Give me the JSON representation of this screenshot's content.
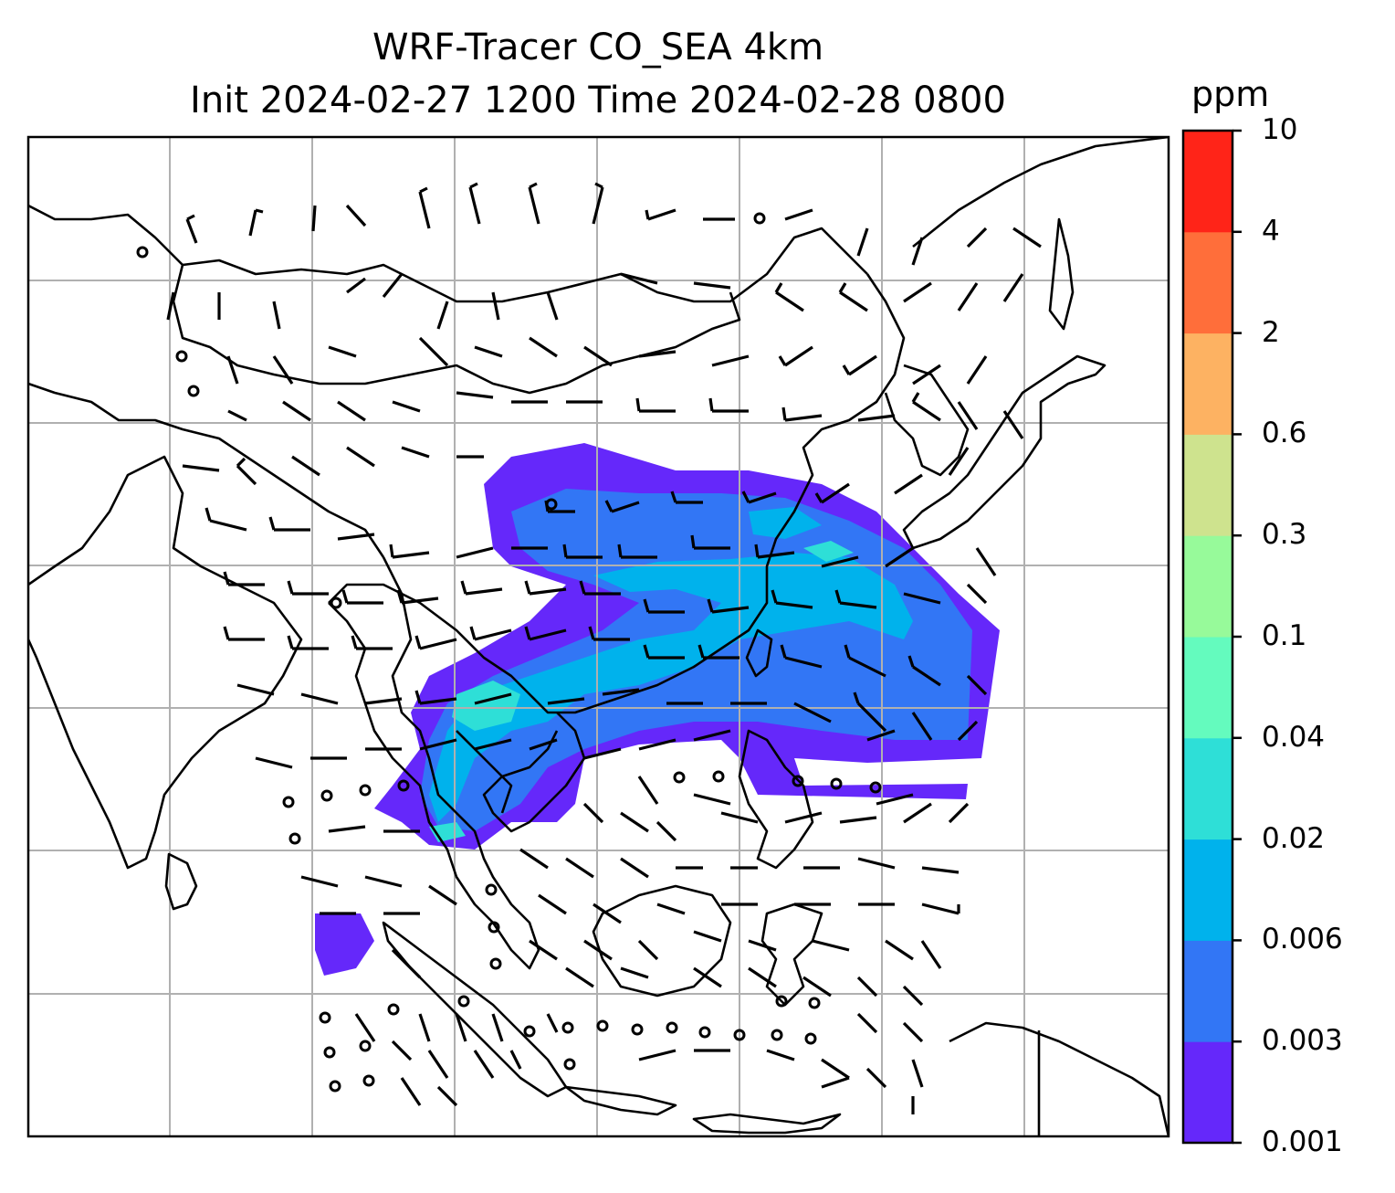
{
  "title": {
    "line1": "WRF-Tracer CO_SEA 4km",
    "line2": "Init 2024-02-27 1200 Time 2024-02-28 0800"
  },
  "colorbar": {
    "unit": "ppm",
    "levels": [
      "0.001",
      "0.003",
      "0.006",
      "0.02",
      "0.04",
      "0.1",
      "0.3",
      "0.6",
      "2",
      "4",
      "10"
    ],
    "colors": [
      "#6528fa",
      "#3276f5",
      "#00b2ec",
      "#2edfd7",
      "#64fbbe",
      "#97fa9a",
      "#cee38e",
      "#fdb262",
      "#ff6e3a",
      "#ff2418"
    ]
  },
  "map": {
    "projection": "regional map with lat/lon gridlines",
    "field": "CO tracer concentration (filled contours)",
    "overlay": [
      "coastlines and country borders",
      "wind barbs",
      "calm-wind circles"
    ]
  }
}
